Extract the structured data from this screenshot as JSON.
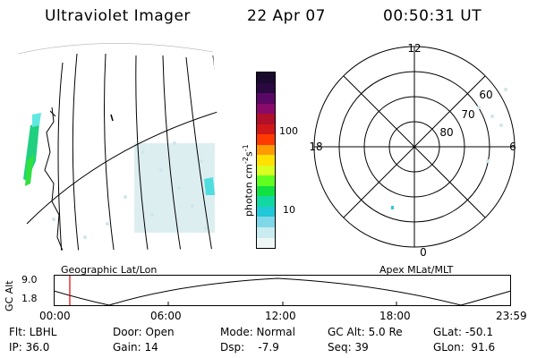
{
  "header": {
    "title": "Ultraviolet Imager",
    "date": "22 Apr 07",
    "time": "00:50:31 UT"
  },
  "colorbar": {
    "label": "photon cm",
    "label_exp1": "-2",
    "label_s": "s",
    "label_exp2": "-1",
    "ticks": [
      "100",
      "10"
    ],
    "colors": [
      "#1a0a2e",
      "#2a0840",
      "#5a0866",
      "#8a0a6a",
      "#b0102a",
      "#d01818",
      "#ff3a00",
      "#ff9a00",
      "#ffe000",
      "#d8ff20",
      "#60ff20",
      "#10e040",
      "#10d8a0",
      "#20c8d8",
      "#7fd8e8",
      "#c8ecf0",
      "#eef6f6"
    ]
  },
  "polar": {
    "mlt_labels": [
      "12",
      "18",
      "6",
      "0"
    ],
    "lat_labels": [
      "60",
      "70",
      "80"
    ]
  },
  "strip": {
    "left_label": "Geographic Lat/Lon",
    "right_label": "Apex MLat/MLT",
    "axis_label": "GC Alt",
    "y_ticks": [
      "9.0",
      "1.8"
    ],
    "x_ticks": [
      "00:00",
      "06:00",
      "12:00",
      "18:00",
      "23:59"
    ]
  },
  "info": {
    "flt": "Flt: LBHL",
    "ip": "IP: 36.0",
    "door": "Door: Open",
    "gain": "Gain: 14",
    "mode": "Mode: Normal",
    "dsp": "Dsp:    -7.9",
    "gcalt": "GC Alt: 5.0 Re",
    "seq": "Seq: 39",
    "glat": "GLat: -50.1",
    "glon": "GLon:  91.6"
  }
}
